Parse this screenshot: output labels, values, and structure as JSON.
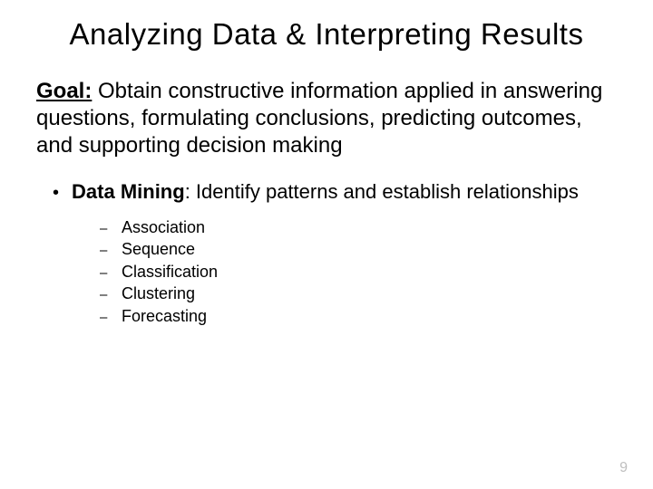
{
  "title": "Analyzing Data & Interpreting Results",
  "goal": {
    "label": "Goal:",
    "text": " Obtain constructive information applied in answering questions, formulating conclusions, predicting outcomes, and supporting decision making"
  },
  "bullet": {
    "marker": "•",
    "label": "Data Mining",
    "text": ":  Identify patterns and establish relationships"
  },
  "subitems": [
    {
      "marker": "–",
      "text": "Association"
    },
    {
      "marker": "–",
      "text": "Sequence"
    },
    {
      "marker": "–",
      "text": "Classification"
    },
    {
      "marker": "–",
      "text": "Clustering"
    },
    {
      "marker": "–",
      "text": "Forecasting"
    }
  ],
  "page_number": "9",
  "colors": {
    "background": "#ffffff",
    "text": "#000000",
    "page_num": "#bfbfbf"
  }
}
